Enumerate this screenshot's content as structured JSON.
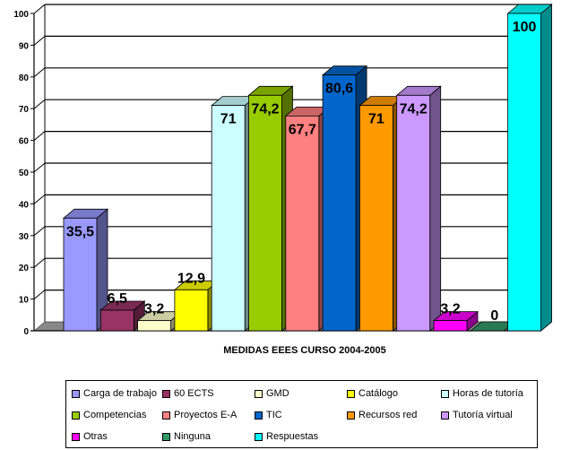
{
  "chart_data": {
    "type": "bar",
    "title": "",
    "xlabel": "MEDIDAS EEES CURSO 2004-2005",
    "ylabel": "",
    "ylim": [
      0,
      100
    ],
    "yticks": [
      "0",
      "10",
      "20",
      "30",
      "40",
      "50",
      "60",
      "70",
      "80",
      "90",
      "100"
    ],
    "grid": true,
    "legend_position": "bottom",
    "series": [
      {
        "name": "Carga de trabajo",
        "value": 35.5,
        "label": "35,5",
        "color": "#9999FF"
      },
      {
        "name": "60 ECTS",
        "value": 6.5,
        "label": "6,5",
        "color": "#993366"
      },
      {
        "name": "GMD",
        "value": 3.2,
        "label": "3,2",
        "color": "#FFFFCC"
      },
      {
        "name": "Catálogo",
        "value": 12.9,
        "label": "12,9",
        "color": "#FFFF00"
      },
      {
        "name": "Horas de tutoría",
        "value": 71,
        "label": "71",
        "color": "#CCFFFF"
      },
      {
        "name": "Competencias",
        "value": 74.2,
        "label": "74,2",
        "color": "#99CC00"
      },
      {
        "name": "Proyectos E-A",
        "value": 67.7,
        "label": "67,7",
        "color": "#FF8080"
      },
      {
        "name": "TIC",
        "value": 80.6,
        "label": "80,6",
        "color": "#0066CC"
      },
      {
        "name": "Recursos red",
        "value": 71,
        "label": "71",
        "color": "#FF9900"
      },
      {
        "name": "Tutoría virtual",
        "value": 74.2,
        "label": "74,2",
        "color": "#CC99FF"
      },
      {
        "name": "Otras",
        "value": 3.2,
        "label": "3,2",
        "color": "#FF00FF"
      },
      {
        "name": "Ninguna",
        "value": 0,
        "label": "0",
        "color": "#339966"
      },
      {
        "name": "Respuestas",
        "value": 100,
        "label": "100",
        "color": "#00FFFF"
      }
    ]
  }
}
